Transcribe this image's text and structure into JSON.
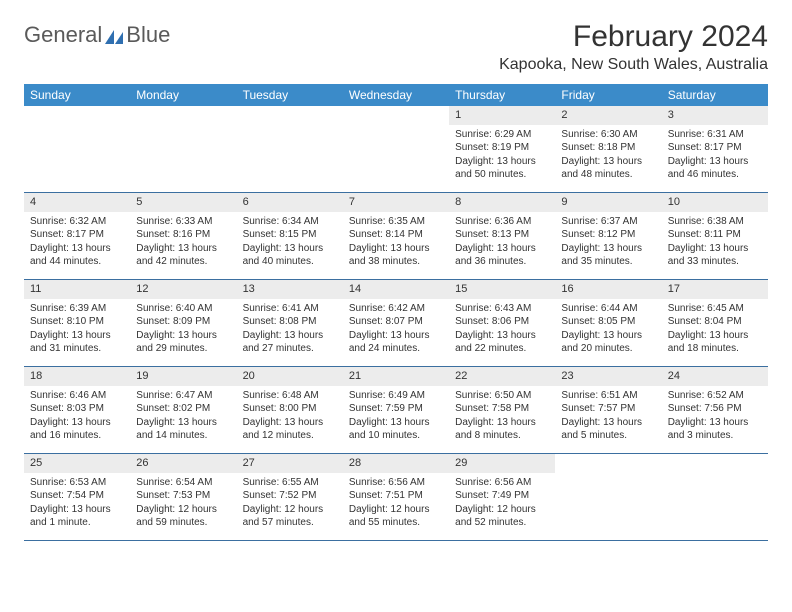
{
  "logo": {
    "text1": "General",
    "text2": "Blue"
  },
  "title": "February 2024",
  "location": "Kapooka, New South Wales, Australia",
  "colors": {
    "header_bg": "#3b8bc9",
    "header_text": "#ffffff",
    "daynum_bg": "#ececec",
    "rule": "#3b6fa0",
    "logo_blue": "#2f6fb0"
  },
  "weekdays": [
    "Sunday",
    "Monday",
    "Tuesday",
    "Wednesday",
    "Thursday",
    "Friday",
    "Saturday"
  ],
  "weeks": [
    [
      {
        "day": "",
        "sunrise": "",
        "sunset": "",
        "daylight1": "",
        "daylight2": ""
      },
      {
        "day": "",
        "sunrise": "",
        "sunset": "",
        "daylight1": "",
        "daylight2": ""
      },
      {
        "day": "",
        "sunrise": "",
        "sunset": "",
        "daylight1": "",
        "daylight2": ""
      },
      {
        "day": "",
        "sunrise": "",
        "sunset": "",
        "daylight1": "",
        "daylight2": ""
      },
      {
        "day": "1",
        "sunrise": "Sunrise: 6:29 AM",
        "sunset": "Sunset: 8:19 PM",
        "daylight1": "Daylight: 13 hours",
        "daylight2": "and 50 minutes."
      },
      {
        "day": "2",
        "sunrise": "Sunrise: 6:30 AM",
        "sunset": "Sunset: 8:18 PM",
        "daylight1": "Daylight: 13 hours",
        "daylight2": "and 48 minutes."
      },
      {
        "day": "3",
        "sunrise": "Sunrise: 6:31 AM",
        "sunset": "Sunset: 8:17 PM",
        "daylight1": "Daylight: 13 hours",
        "daylight2": "and 46 minutes."
      }
    ],
    [
      {
        "day": "4",
        "sunrise": "Sunrise: 6:32 AM",
        "sunset": "Sunset: 8:17 PM",
        "daylight1": "Daylight: 13 hours",
        "daylight2": "and 44 minutes."
      },
      {
        "day": "5",
        "sunrise": "Sunrise: 6:33 AM",
        "sunset": "Sunset: 8:16 PM",
        "daylight1": "Daylight: 13 hours",
        "daylight2": "and 42 minutes."
      },
      {
        "day": "6",
        "sunrise": "Sunrise: 6:34 AM",
        "sunset": "Sunset: 8:15 PM",
        "daylight1": "Daylight: 13 hours",
        "daylight2": "and 40 minutes."
      },
      {
        "day": "7",
        "sunrise": "Sunrise: 6:35 AM",
        "sunset": "Sunset: 8:14 PM",
        "daylight1": "Daylight: 13 hours",
        "daylight2": "and 38 minutes."
      },
      {
        "day": "8",
        "sunrise": "Sunrise: 6:36 AM",
        "sunset": "Sunset: 8:13 PM",
        "daylight1": "Daylight: 13 hours",
        "daylight2": "and 36 minutes."
      },
      {
        "day": "9",
        "sunrise": "Sunrise: 6:37 AM",
        "sunset": "Sunset: 8:12 PM",
        "daylight1": "Daylight: 13 hours",
        "daylight2": "and 35 minutes."
      },
      {
        "day": "10",
        "sunrise": "Sunrise: 6:38 AM",
        "sunset": "Sunset: 8:11 PM",
        "daylight1": "Daylight: 13 hours",
        "daylight2": "and 33 minutes."
      }
    ],
    [
      {
        "day": "11",
        "sunrise": "Sunrise: 6:39 AM",
        "sunset": "Sunset: 8:10 PM",
        "daylight1": "Daylight: 13 hours",
        "daylight2": "and 31 minutes."
      },
      {
        "day": "12",
        "sunrise": "Sunrise: 6:40 AM",
        "sunset": "Sunset: 8:09 PM",
        "daylight1": "Daylight: 13 hours",
        "daylight2": "and 29 minutes."
      },
      {
        "day": "13",
        "sunrise": "Sunrise: 6:41 AM",
        "sunset": "Sunset: 8:08 PM",
        "daylight1": "Daylight: 13 hours",
        "daylight2": "and 27 minutes."
      },
      {
        "day": "14",
        "sunrise": "Sunrise: 6:42 AM",
        "sunset": "Sunset: 8:07 PM",
        "daylight1": "Daylight: 13 hours",
        "daylight2": "and 24 minutes."
      },
      {
        "day": "15",
        "sunrise": "Sunrise: 6:43 AM",
        "sunset": "Sunset: 8:06 PM",
        "daylight1": "Daylight: 13 hours",
        "daylight2": "and 22 minutes."
      },
      {
        "day": "16",
        "sunrise": "Sunrise: 6:44 AM",
        "sunset": "Sunset: 8:05 PM",
        "daylight1": "Daylight: 13 hours",
        "daylight2": "and 20 minutes."
      },
      {
        "day": "17",
        "sunrise": "Sunrise: 6:45 AM",
        "sunset": "Sunset: 8:04 PM",
        "daylight1": "Daylight: 13 hours",
        "daylight2": "and 18 minutes."
      }
    ],
    [
      {
        "day": "18",
        "sunrise": "Sunrise: 6:46 AM",
        "sunset": "Sunset: 8:03 PM",
        "daylight1": "Daylight: 13 hours",
        "daylight2": "and 16 minutes."
      },
      {
        "day": "19",
        "sunrise": "Sunrise: 6:47 AM",
        "sunset": "Sunset: 8:02 PM",
        "daylight1": "Daylight: 13 hours",
        "daylight2": "and 14 minutes."
      },
      {
        "day": "20",
        "sunrise": "Sunrise: 6:48 AM",
        "sunset": "Sunset: 8:00 PM",
        "daylight1": "Daylight: 13 hours",
        "daylight2": "and 12 minutes."
      },
      {
        "day": "21",
        "sunrise": "Sunrise: 6:49 AM",
        "sunset": "Sunset: 7:59 PM",
        "daylight1": "Daylight: 13 hours",
        "daylight2": "and 10 minutes."
      },
      {
        "day": "22",
        "sunrise": "Sunrise: 6:50 AM",
        "sunset": "Sunset: 7:58 PM",
        "daylight1": "Daylight: 13 hours",
        "daylight2": "and 8 minutes."
      },
      {
        "day": "23",
        "sunrise": "Sunrise: 6:51 AM",
        "sunset": "Sunset: 7:57 PM",
        "daylight1": "Daylight: 13 hours",
        "daylight2": "and 5 minutes."
      },
      {
        "day": "24",
        "sunrise": "Sunrise: 6:52 AM",
        "sunset": "Sunset: 7:56 PM",
        "daylight1": "Daylight: 13 hours",
        "daylight2": "and 3 minutes."
      }
    ],
    [
      {
        "day": "25",
        "sunrise": "Sunrise: 6:53 AM",
        "sunset": "Sunset: 7:54 PM",
        "daylight1": "Daylight: 13 hours",
        "daylight2": "and 1 minute."
      },
      {
        "day": "26",
        "sunrise": "Sunrise: 6:54 AM",
        "sunset": "Sunset: 7:53 PM",
        "daylight1": "Daylight: 12 hours",
        "daylight2": "and 59 minutes."
      },
      {
        "day": "27",
        "sunrise": "Sunrise: 6:55 AM",
        "sunset": "Sunset: 7:52 PM",
        "daylight1": "Daylight: 12 hours",
        "daylight2": "and 57 minutes."
      },
      {
        "day": "28",
        "sunrise": "Sunrise: 6:56 AM",
        "sunset": "Sunset: 7:51 PM",
        "daylight1": "Daylight: 12 hours",
        "daylight2": "and 55 minutes."
      },
      {
        "day": "29",
        "sunrise": "Sunrise: 6:56 AM",
        "sunset": "Sunset: 7:49 PM",
        "daylight1": "Daylight: 12 hours",
        "daylight2": "and 52 minutes."
      },
      {
        "day": "",
        "sunrise": "",
        "sunset": "",
        "daylight1": "",
        "daylight2": ""
      },
      {
        "day": "",
        "sunrise": "",
        "sunset": "",
        "daylight1": "",
        "daylight2": ""
      }
    ]
  ]
}
